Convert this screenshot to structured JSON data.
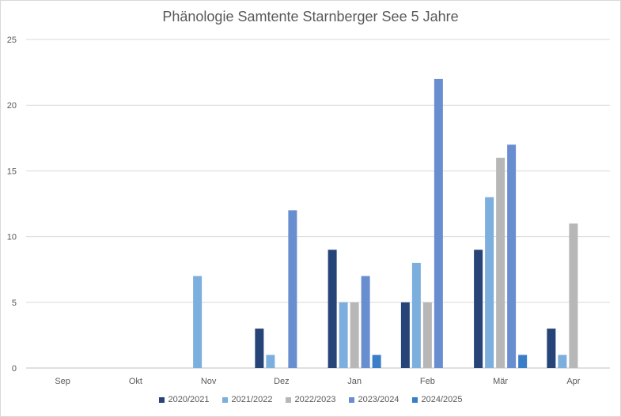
{
  "chart_data": {
    "type": "bar",
    "title": "Phänologie Samtente Starnberger See  5 Jahre",
    "xlabel": "",
    "ylabel": "",
    "categories": [
      "Sep",
      "Okt",
      "Nov",
      "Dez",
      "Jan",
      "Feb",
      "Mär",
      "Apr"
    ],
    "ylim": [
      0,
      25
    ],
    "yticks": [
      "0",
      "5",
      "10",
      "15",
      "20",
      "25"
    ],
    "grid": true,
    "legend_position": "bottom",
    "series": [
      {
        "name": "2020/2021",
        "color": "#264478",
        "values": [
          0,
          0,
          0,
          3,
          9,
          5,
          9,
          3
        ]
      },
      {
        "name": "2021/2022",
        "color": "#7cafdd",
        "values": [
          0,
          0,
          7,
          1,
          5,
          8,
          13,
          1
        ]
      },
      {
        "name": "2022/2023",
        "color": "#b7b7b7",
        "values": [
          0,
          0,
          0,
          0,
          5,
          5,
          16,
          11
        ]
      },
      {
        "name": "2023/2024",
        "color": "#698ed0",
        "values": [
          0,
          0,
          0,
          12,
          7,
          22,
          17,
          0
        ]
      },
      {
        "name": "2024/2025",
        "color": "#3a7dc9",
        "values": [
          0,
          0,
          0,
          0,
          1,
          0,
          1,
          0
        ]
      }
    ]
  }
}
